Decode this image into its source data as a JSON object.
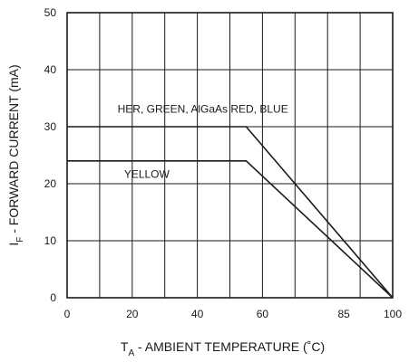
{
  "chart_data": {
    "type": "line",
    "xlabel": {
      "symbol": "T",
      "subscript": "A",
      "rest": " - AMBIENT TEMPERATURE (˚C)"
    },
    "ylabel": {
      "symbol": "I",
      "subscript": "F",
      "rest": " - FORWARD CURRENT (mA)"
    },
    "xlim": [
      0,
      100
    ],
    "ylim": [
      0,
      50
    ],
    "x_ticks": [
      {
        "value": 0,
        "label": "0"
      },
      {
        "value": 20,
        "label": "20"
      },
      {
        "value": 40,
        "label": "40"
      },
      {
        "value": 60,
        "label": "60"
      },
      {
        "value": 85,
        "label": "85"
      },
      {
        "value": 100,
        "label": "100"
      }
    ],
    "y_ticks": [
      {
        "value": 0,
        "label": "0"
      },
      {
        "value": 10,
        "label": "10"
      },
      {
        "value": 20,
        "label": "20"
      },
      {
        "value": 30,
        "label": "30"
      },
      {
        "value": 40,
        "label": "40"
      },
      {
        "value": 50,
        "label": "50"
      }
    ],
    "x_gridlines": [
      0,
      10,
      20,
      30,
      40,
      50,
      60,
      70,
      80,
      90,
      100
    ],
    "y_gridlines": [
      0,
      10,
      20,
      30,
      40,
      50
    ],
    "series": [
      {
        "name": "HER, GREEN, AlGaAs RED, BLUE",
        "points": [
          [
            0,
            30
          ],
          [
            55,
            30
          ],
          [
            100,
            0
          ]
        ],
        "label_at": [
          15.5,
          32.5
        ]
      },
      {
        "name": "YELLOW",
        "points": [
          [
            0,
            24
          ],
          [
            55,
            24
          ],
          [
            100,
            0
          ]
        ],
        "label_at": [
          17.5,
          21.0
        ]
      }
    ],
    "grid": true,
    "legend": "none"
  }
}
